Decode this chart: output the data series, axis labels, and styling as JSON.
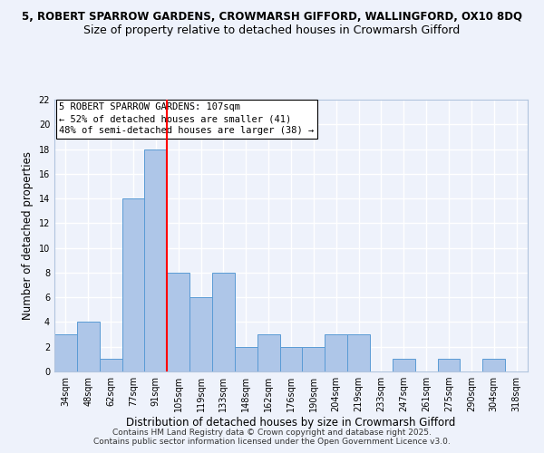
{
  "title_line1": "5, ROBERT SPARROW GARDENS, CROWMARSH GIFFORD, WALLINGFORD, OX10 8DQ",
  "title_line2": "Size of property relative to detached houses in Crowmarsh Gifford",
  "xlabel": "Distribution of detached houses by size in Crowmarsh Gifford",
  "ylabel": "Number of detached properties",
  "bar_labels": [
    "34sqm",
    "48sqm",
    "62sqm",
    "77sqm",
    "91sqm",
    "105sqm",
    "119sqm",
    "133sqm",
    "148sqm",
    "162sqm",
    "176sqm",
    "190sqm",
    "204sqm",
    "219sqm",
    "233sqm",
    "247sqm",
    "261sqm",
    "275sqm",
    "290sqm",
    "304sqm",
    "318sqm"
  ],
  "bar_counts": [
    3,
    4,
    1,
    14,
    18,
    8,
    6,
    8,
    2,
    3,
    2,
    2,
    3,
    3,
    0,
    1,
    0,
    1,
    0,
    1,
    0
  ],
  "bar_color": "#aec6e8",
  "bar_edge_color": "#5a9bd5",
  "red_line_index": 4.5,
  "annotation_text": "5 ROBERT SPARROW GARDENS: 107sqm\n← 52% of detached houses are smaller (41)\n48% of semi-detached houses are larger (38) →",
  "ylim": [
    0,
    22
  ],
  "yticks": [
    0,
    2,
    4,
    6,
    8,
    10,
    12,
    14,
    16,
    18,
    20,
    22
  ],
  "footnote1": "Contains HM Land Registry data © Crown copyright and database right 2025.",
  "footnote2": "Contains public sector information licensed under the Open Government Licence v3.0.",
  "bg_color": "#eef2fb",
  "grid_color": "#ffffff",
  "title1_fontsize": 8.5,
  "title2_fontsize": 9,
  "xlabel_fontsize": 8.5,
  "ylabel_fontsize": 8.5,
  "annotation_fontsize": 7.5,
  "tick_fontsize": 7,
  "footnote_fontsize": 6.5
}
